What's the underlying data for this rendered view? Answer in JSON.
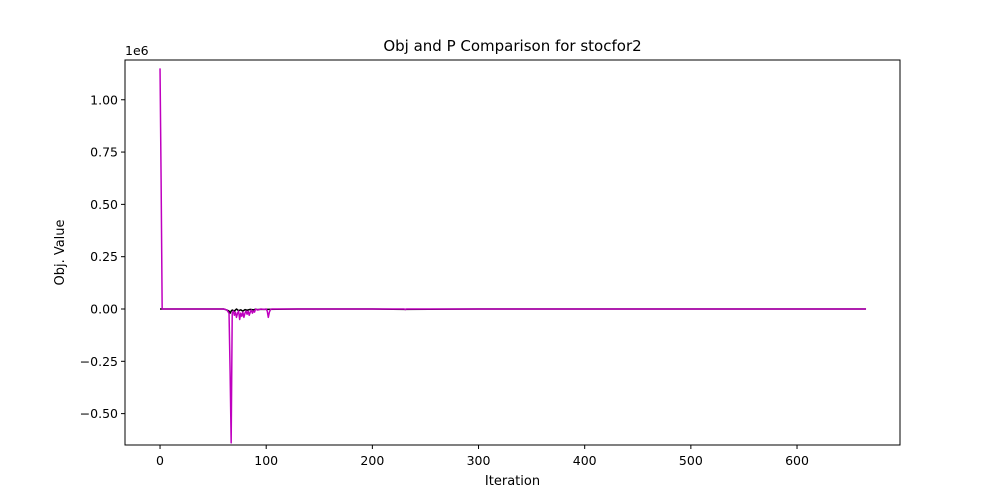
{
  "chart_data": {
    "type": "line",
    "title": "Obj and P Comparison for stocfor2",
    "xlabel": "Iteration",
    "ylabel": "Obj. Value",
    "y_offset_label": "1e6",
    "xlim": [
      -33,
      697
    ],
    "ylim": [
      -0.65,
      1.19
    ],
    "y_scale_multiplier": 1000000,
    "xticks": [
      0,
      100,
      200,
      300,
      400,
      500,
      600
    ],
    "xtick_labels": [
      "0",
      "100",
      "200",
      "300",
      "400",
      "500",
      "600"
    ],
    "yticks": [
      -0.5,
      -0.25,
      0.0,
      0.25,
      0.5,
      0.75,
      1.0
    ],
    "ytick_labels": [
      "−0.50",
      "−0.25",
      "0.00",
      "0.25",
      "0.50",
      "0.75",
      "1.00"
    ],
    "grid": false,
    "legend": "none",
    "series": [
      {
        "color": "#000000",
        "x": [
          0,
          60,
          63,
          65,
          66,
          67,
          68,
          70,
          72,
          74,
          76,
          78,
          80,
          82,
          85,
          88,
          90,
          92,
          95,
          100,
          110,
          130,
          160,
          200,
          230,
          300,
          400,
          500,
          600,
          665
        ],
        "y": [
          0.0,
          0.0,
          -0.005,
          -0.01,
          -0.02,
          -0.01,
          -0.005,
          -0.01,
          0.0,
          -0.008,
          -0.004,
          -0.01,
          -0.003,
          -0.006,
          -0.002,
          -0.004,
          -0.001,
          -0.003,
          -0.001,
          -0.002,
          -0.001,
          0.0,
          0.0,
          0.0,
          -0.002,
          0.0,
          0.0,
          0.0,
          0.0,
          0.0
        ]
      },
      {
        "color": "#bf00bf",
        "x": [
          0,
          1,
          2,
          10,
          40,
          60,
          63,
          65,
          66,
          67,
          68,
          69,
          70,
          71,
          72,
          73,
          74,
          75,
          76,
          77,
          78,
          79,
          80,
          81,
          82,
          83,
          84,
          85,
          86,
          87,
          88,
          89,
          90,
          92,
          95,
          98,
          100,
          101,
          102,
          103,
          104,
          105,
          110,
          130,
          160,
          200,
          230,
          231,
          232,
          300,
          400,
          500,
          600,
          665
        ],
        "y": [
          1.15,
          0.62,
          0.0,
          0.0,
          0.0,
          0.0,
          -0.005,
          -0.02,
          -0.3,
          -0.64,
          -0.02,
          -0.01,
          -0.03,
          -0.015,
          -0.04,
          -0.02,
          -0.01,
          -0.05,
          -0.02,
          -0.035,
          -0.015,
          -0.04,
          -0.02,
          -0.01,
          -0.025,
          -0.01,
          -0.03,
          -0.015,
          -0.005,
          -0.02,
          -0.01,
          -0.015,
          0.0,
          -0.005,
          0.0,
          -0.002,
          0.0,
          -0.01,
          -0.04,
          -0.015,
          -0.003,
          0.0,
          0.0,
          0.0,
          0.0,
          0.0,
          0.0,
          -0.003,
          0.0,
          0.0,
          0.0,
          0.0,
          0.0,
          0.0
        ]
      }
    ]
  }
}
